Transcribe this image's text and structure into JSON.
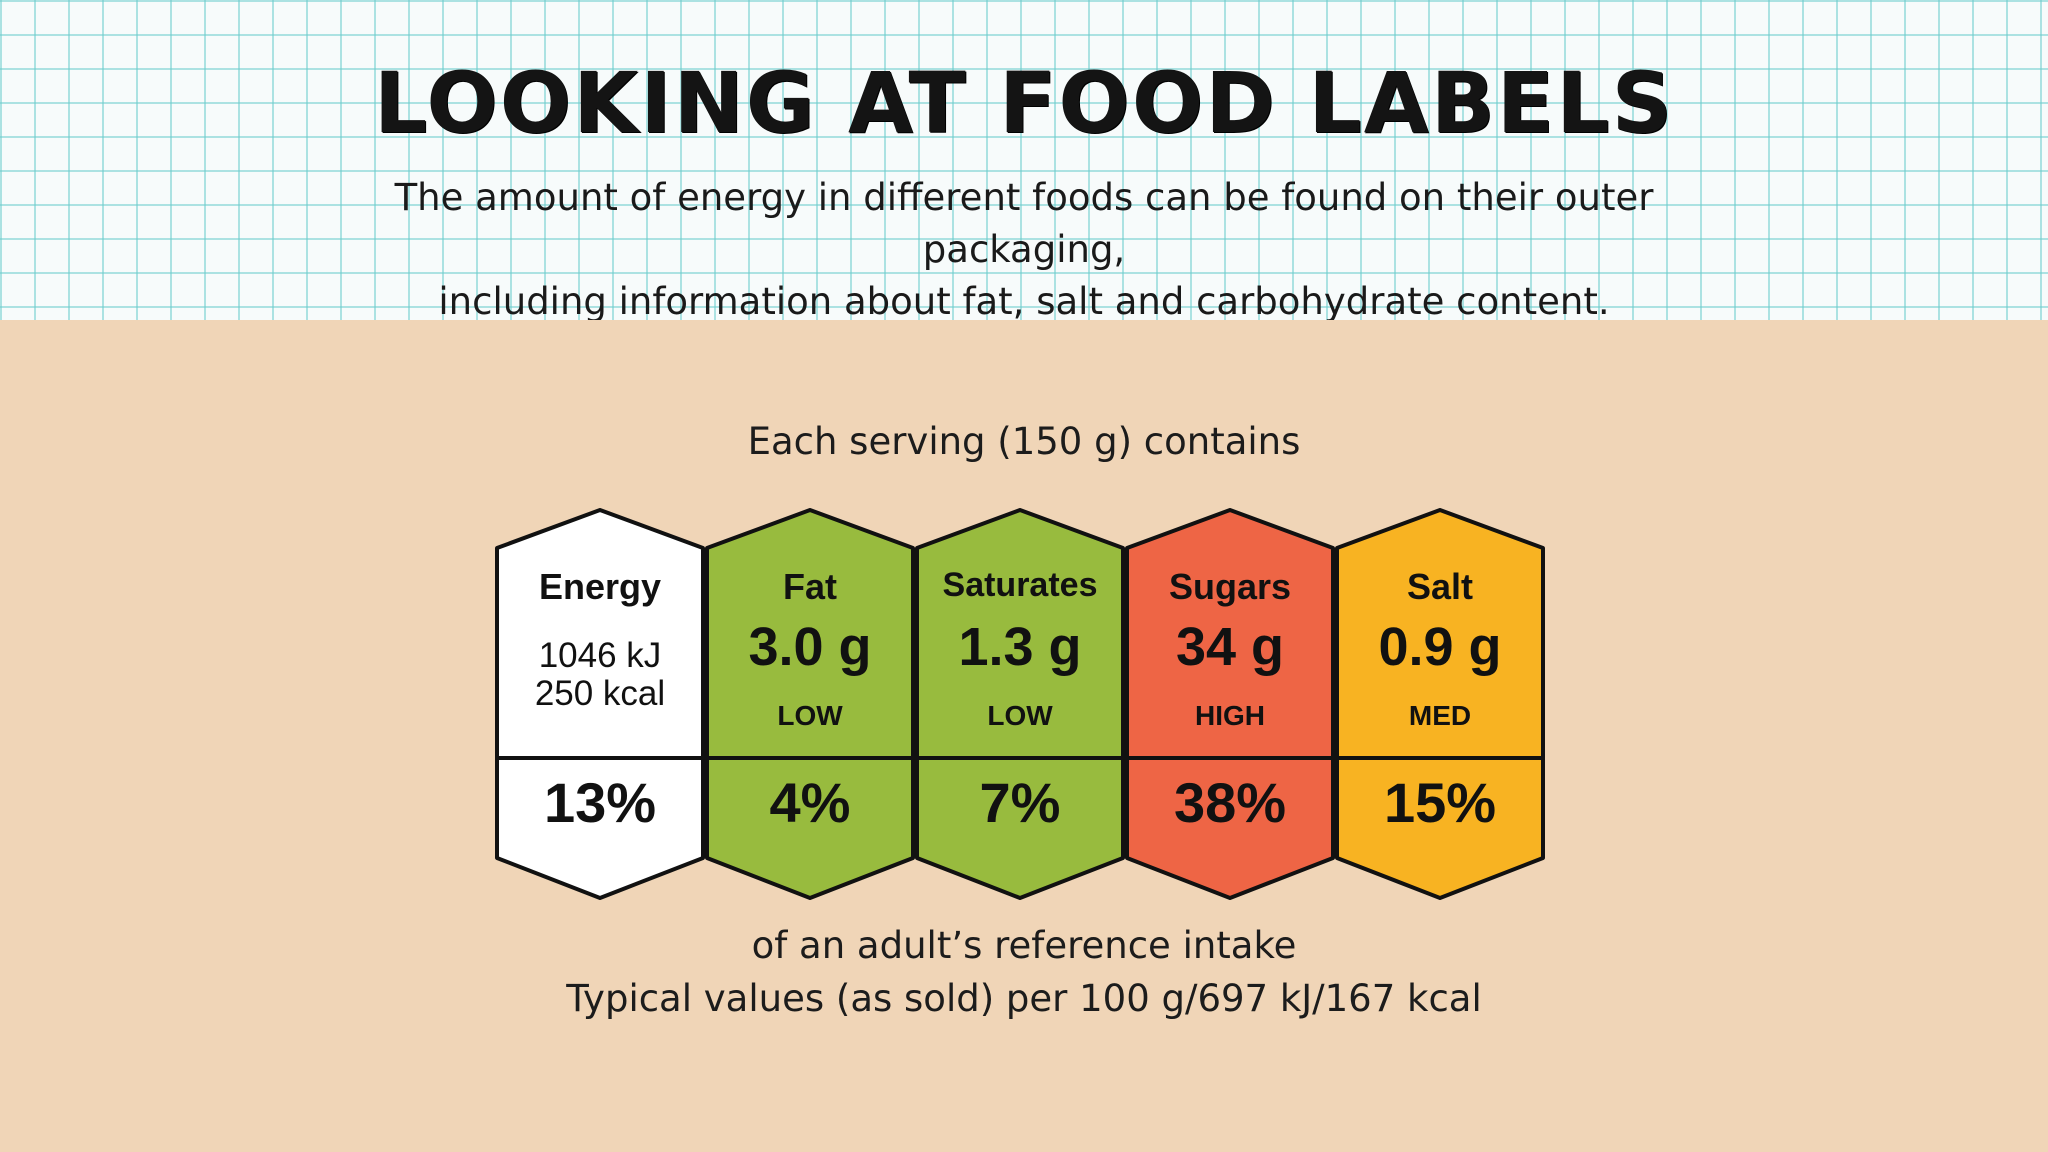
{
  "header": {
    "title": "LOOKING AT FOOD LABELS",
    "subtitle_line1": "The amount of energy in different foods can be found on their outer packaging,",
    "subtitle_line2": "including information about fat, salt and carbohydrate content."
  },
  "label": {
    "serving_text": "Each serving (150 g) contains",
    "footer_line1": "of an adult’s reference intake",
    "footer_line2": "Typical values (as sold) per 100 g/697 kJ/167 kcal",
    "energy": {
      "name": "Energy",
      "kj": "1046 kJ",
      "kcal": "250 kcal",
      "percent": "13%",
      "color": "#ffffff"
    },
    "fat": {
      "name": "Fat",
      "amount": "3.0 g",
      "rating": "LOW",
      "percent": "4%",
      "color": "#98bb3e"
    },
    "saturates": {
      "name": "Saturates",
      "amount": "1.3 g",
      "rating": "LOW",
      "percent": "7%",
      "color": "#98bb3e"
    },
    "sugars": {
      "name": "Sugars",
      "amount": "34 g",
      "rating": "HIGH",
      "percent": "38%",
      "color": "#ee6545"
    },
    "salt": {
      "name": "Salt",
      "amount": "0.9 g",
      "rating": "MED",
      "percent": "15%",
      "color": "#f8b322"
    }
  },
  "colors": {
    "header_grid": "#6ecdcd",
    "background": "#f0d5b7",
    "outline": "#111111"
  }
}
